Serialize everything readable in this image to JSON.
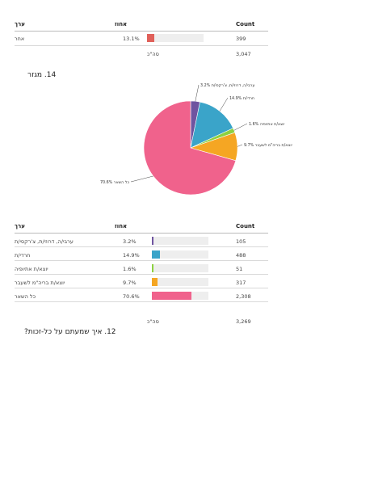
{
  "table1": {
    "headers": {
      "value": "ערך",
      "percent": "אחוז",
      "count": "Count"
    },
    "rows": [
      {
        "label": "אחר",
        "percent": "13.1%",
        "count": "399",
        "fraction": 0.131,
        "color": "#e0605a"
      }
    ],
    "total": {
      "label": "סה\"כ",
      "count": "3,047"
    }
  },
  "question14": {
    "title": "14. מגזר"
  },
  "chart_data": {
    "type": "pie",
    "slices": [
      {
        "label": "ערבי/ה, דרוזי/ת, צ'רקסי/ת",
        "label_pct": "3.2%",
        "value": 3.2,
        "color": "#6f54a0"
      },
      {
        "label": "חרדי/ת",
        "label_pct": "14.9%",
        "value": 14.9,
        "color": "#3aa4c9"
      },
      {
        "label": "יוצא/ת אתיופיה",
        "label_pct": "1.6%",
        "value": 1.6,
        "color": "#8dd140"
      },
      {
        "label": "יוצא/ת בריה\"מ לשעבר",
        "label_pct": "9.7%",
        "value": 9.7,
        "color": "#f5a623"
      },
      {
        "label": "כל השאר",
        "label_pct": "70.6%",
        "value": 70.6,
        "color": "#f0628c"
      }
    ]
  },
  "table2": {
    "headers": {
      "value": "ערך",
      "percent": "אחוז",
      "count": "Count"
    },
    "rows": [
      {
        "label": "ערבי/ה, דרוזי/ת, צ'רקסי/ת",
        "percent": "3.2%",
        "count": "105",
        "fraction": 0.032,
        "color": "#6f54a0"
      },
      {
        "label": "חרדי/ת",
        "percent": "14.9%",
        "count": "488",
        "fraction": 0.149,
        "color": "#3aa4c9"
      },
      {
        "label": "יוצא/ת אתיופיה",
        "percent": "1.6%",
        "count": "51",
        "fraction": 0.016,
        "color": "#8dd140"
      },
      {
        "label": "יוצא/ת בריה\"מ לשעבר",
        "percent": "9.7%",
        "count": "317",
        "fraction": 0.097,
        "color": "#f5a623"
      },
      {
        "label": "כל השאר",
        "percent": "70.6%",
        "count": "2,308",
        "fraction": 0.706,
        "color": "#f0628c"
      }
    ],
    "total": {
      "label": "סה\"כ",
      "count": "3,269"
    }
  },
  "question12": {
    "title": "12. איך שמעתם על כל-זכות?"
  }
}
